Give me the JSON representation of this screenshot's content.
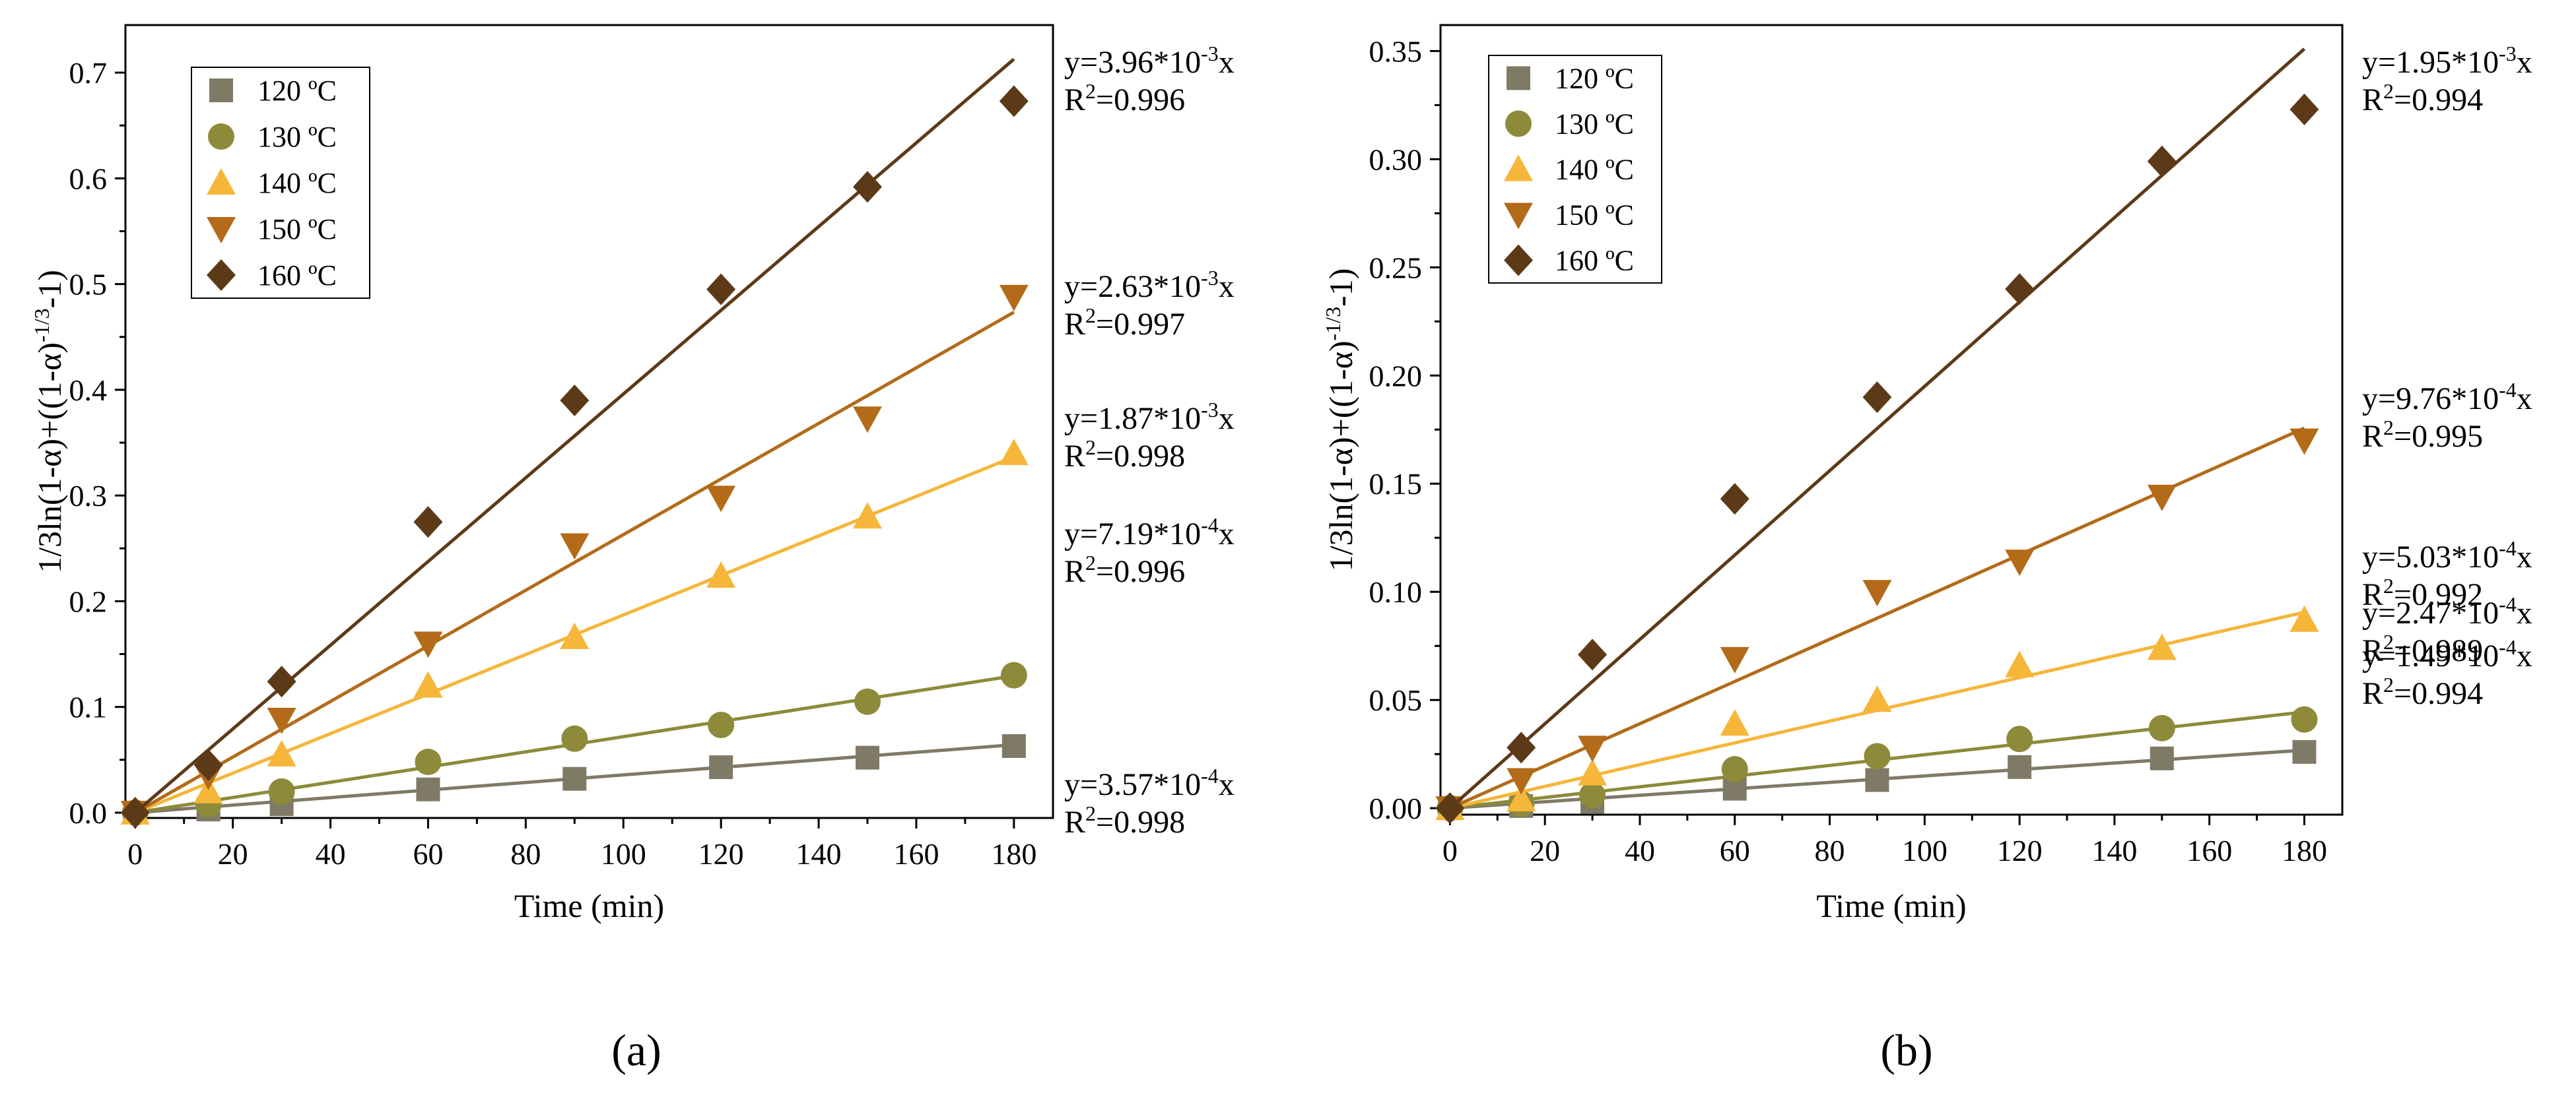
{
  "chart_data": [
    {
      "type": "scatter",
      "panel_label": "a",
      "xlabel": "Time (min)",
      "ylabel": "1/3ln(1-α)+((1-α)^-1/3-1)",
      "ylabel_parts": {
        "prefix": "1/3ln(1-α)+((1-α)",
        "sup": "-1/3",
        "suffix": "-1)"
      },
      "xlim": [
        -2,
        188
      ],
      "ylim": [
        -0.005,
        0.745
      ],
      "xticks": [
        0,
        20,
        40,
        60,
        80,
        100,
        120,
        140,
        160,
        180
      ],
      "yticks": [
        0.0,
        0.1,
        0.2,
        0.3,
        0.4,
        0.5,
        0.6,
        0.7
      ],
      "ytick_labels": [
        "0.0",
        "0.1",
        "0.2",
        "0.3",
        "0.4",
        "0.5",
        "0.6",
        "0.7"
      ],
      "x": [
        0,
        15,
        30,
        60,
        90,
        120,
        150,
        180
      ],
      "legend_position": "top-left",
      "series": [
        {
          "name": "120 ºC",
          "marker": "square",
          "color": "#7f7a66",
          "values": [
            0,
            0.003,
            0.008,
            0.022,
            0.032,
            0.043,
            0.052,
            0.063
          ],
          "slope": 0.000357,
          "equation": {
            "prefix": "y=3.57*10",
            "exp": "-4",
            "suffix": "x"
          },
          "r2": "=0.998"
        },
        {
          "name": "130 ºC",
          "marker": "circle",
          "color": "#8d8a3a",
          "values": [
            0,
            0.008,
            0.02,
            0.048,
            0.07,
            0.083,
            0.105,
            0.13
          ],
          "slope": 0.000719,
          "equation": {
            "prefix": "y=7.19*10",
            "exp": "-4",
            "suffix": "x"
          },
          "r2": "=0.996"
        },
        {
          "name": "140 ºC",
          "marker": "triangle-up",
          "color": "#f5b63a",
          "values": [
            0,
            0.02,
            0.055,
            0.12,
            0.166,
            0.224,
            0.28,
            0.34
          ],
          "slope": 0.00187,
          "equation": {
            "prefix": "y=1.87*10",
            "exp": "-3",
            "suffix": "x"
          },
          "r2": "=0.998"
        },
        {
          "name": "150 ºC",
          "marker": "triangle-down",
          "color": "#b36b19",
          "values": [
            0,
            0.035,
            0.088,
            0.16,
            0.253,
            0.298,
            0.373,
            0.488
          ],
          "slope": 0.00263,
          "equation": {
            "prefix": "y=2.63*10",
            "exp": "-3",
            "suffix": "x"
          },
          "r2": "=0.997"
        },
        {
          "name": "160 ºC",
          "marker": "diamond",
          "color": "#5d3a17",
          "values": [
            0,
            0.045,
            0.124,
            0.275,
            0.39,
            0.495,
            0.592,
            0.673
          ],
          "slope": 0.00396,
          "equation": {
            "prefix": "y=3.96*10",
            "exp": "-3",
            "suffix": "x"
          },
          "r2": "=0.996"
        }
      ]
    },
    {
      "type": "scatter",
      "panel_label": "b",
      "xlabel": "Time (min)",
      "ylabel": "1/3ln(1-α)+((1-α)^-1/3-1)",
      "ylabel_parts": {
        "prefix": "1/3ln(1-α)+((1-α)",
        "sup": "-1/3",
        "suffix": "-1)"
      },
      "xlim": [
        -2,
        188
      ],
      "ylim": [
        -0.003,
        0.362
      ],
      "xticks": [
        0,
        20,
        40,
        60,
        80,
        100,
        120,
        140,
        160,
        180
      ],
      "yticks": [
        0.0,
        0.05,
        0.1,
        0.15,
        0.2,
        0.25,
        0.3,
        0.35
      ],
      "ytick_labels": [
        "0.00",
        "0.05",
        "0.10",
        "0.15",
        "0.20",
        "0.25",
        "0.30",
        "0.35"
      ],
      "x": [
        0,
        15,
        30,
        60,
        90,
        120,
        150,
        180
      ],
      "legend_position": "top-left",
      "series": [
        {
          "name": "120 ºC",
          "marker": "square",
          "color": "#7f7a66",
          "values": [
            0,
            0.001,
            0.003,
            0.009,
            0.013,
            0.019,
            0.023,
            0.026
          ],
          "slope": 0.000149,
          "equation": {
            "prefix": "y=1.49*10",
            "exp": "-4",
            "suffix": "x"
          },
          "r2": "=0.994"
        },
        {
          "name": "130 ºC",
          "marker": "circle",
          "color": "#8d8a3a",
          "values": [
            0,
            0.002,
            0.006,
            0.018,
            0.024,
            0.032,
            0.037,
            0.041
          ],
          "slope": 0.000247,
          "equation": {
            "prefix": "y=2.47*10",
            "exp": "-4",
            "suffix": "x"
          },
          "r2": "=0.989"
        },
        {
          "name": "140 ºC",
          "marker": "triangle-up",
          "color": "#f5b63a",
          "values": [
            0,
            0.004,
            0.016,
            0.039,
            0.05,
            0.066,
            0.074,
            0.087
          ],
          "slope": 0.000503,
          "equation": {
            "prefix": "y=5.03*10",
            "exp": "-4",
            "suffix": "x"
          },
          "r2": "=0.992"
        },
        {
          "name": "150 ºC",
          "marker": "triangle-down",
          "color": "#b36b19",
          "values": [
            0,
            0.013,
            0.028,
            0.069,
            0.1,
            0.114,
            0.144,
            0.17
          ],
          "slope": 0.000976,
          "equation": {
            "prefix": "y=9.76*10",
            "exp": "-4",
            "suffix": "x"
          },
          "r2": "=0.995"
        },
        {
          "name": "160 ºC",
          "marker": "diamond",
          "color": "#5d3a17",
          "values": [
            0,
            0.028,
            0.071,
            0.143,
            0.19,
            0.24,
            0.299,
            0.323
          ],
          "slope": 0.00195,
          "equation": {
            "prefix": "y=1.95*10",
            "exp": "-3",
            "suffix": "x"
          },
          "r2": "=0.994"
        }
      ]
    }
  ],
  "captions": [
    "(a)",
    "(b)"
  ]
}
